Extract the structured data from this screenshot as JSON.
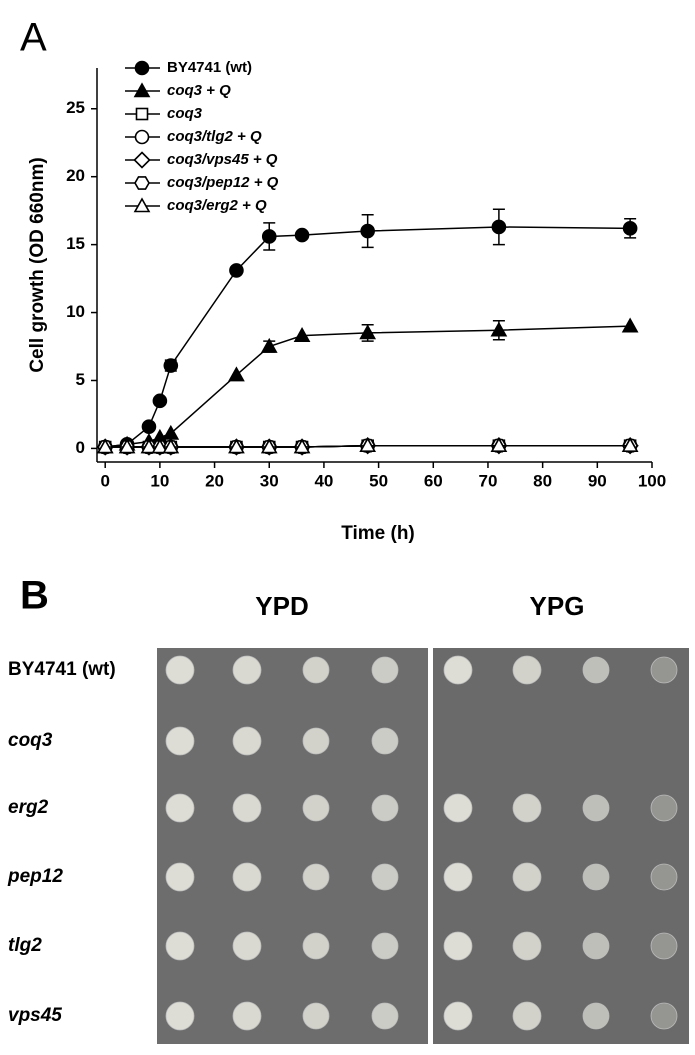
{
  "panel_labels": [
    "A",
    "B"
  ],
  "chart_data": {
    "type": "line",
    "x_label": "Time (h)",
    "y_label": "Cell growth (OD 660nm)",
    "x": [
      0,
      4,
      8,
      10,
      12,
      24,
      30,
      36,
      48,
      72,
      96
    ],
    "xlim": [
      -1.5,
      100
    ],
    "xticks": [
      0,
      10,
      20,
      30,
      40,
      50,
      60,
      70,
      80,
      90,
      100
    ],
    "ylim": [
      -1,
      28
    ],
    "yticks": [
      0,
      5,
      10,
      15,
      20,
      25
    ],
    "legend": "top-left",
    "series": [
      {
        "name": "BY4741 (wt)",
        "color": "#000000",
        "marker": "circle",
        "filled": true,
        "values": [
          0.1,
          0.3,
          1.6,
          3.5,
          6.1,
          13.1,
          15.6,
          15.7,
          16.0,
          16.3,
          16.2
        ],
        "errors": [
          null,
          null,
          null,
          null,
          0.4,
          null,
          1.0,
          0.2,
          1.2,
          1.3,
          0.7
        ]
      },
      {
        "name": "coq3 + Q",
        "color": "#000000",
        "marker": "triangle",
        "filled": true,
        "values": [
          0.1,
          0.3,
          0.5,
          0.8,
          1.1,
          5.4,
          7.5,
          8.3,
          8.5,
          8.7,
          9.0
        ],
        "errors": [
          null,
          null,
          null,
          null,
          null,
          null,
          0.4,
          null,
          0.6,
          0.7,
          null
        ]
      },
      {
        "name": "coq3",
        "color": "#000000",
        "marker": "square",
        "filled": false,
        "values": [
          0.1,
          0.1,
          0.1,
          0.1,
          0.1,
          0.1,
          0.1,
          0.1,
          0.2,
          0.2,
          0.2
        ]
      },
      {
        "name": "coq3/tlg2 + Q",
        "color": "#000000",
        "marker": "circle",
        "filled": false,
        "values": [
          0.1,
          0.1,
          0.1,
          0.1,
          0.1,
          0.1,
          0.1,
          0.1,
          0.2,
          0.2,
          0.2
        ]
      },
      {
        "name": "coq3/vps45 + Q",
        "color": "#000000",
        "marker": "diamond",
        "filled": false,
        "values": [
          0.1,
          0.1,
          0.1,
          0.1,
          0.1,
          0.1,
          0.1,
          0.1,
          0.2,
          0.2,
          0.2
        ]
      },
      {
        "name": "coq3/pep12 + Q",
        "color": "#000000",
        "marker": "hexagon",
        "filled": false,
        "values": [
          0.1,
          0.1,
          0.1,
          0.1,
          0.1,
          0.1,
          0.1,
          0.1,
          0.2,
          0.2,
          0.2
        ]
      },
      {
        "name": "coq3/erg2 + Q",
        "color": "#000000",
        "marker": "triangle",
        "filled": false,
        "values": [
          0.1,
          0.1,
          0.1,
          0.1,
          0.1,
          0.1,
          0.1,
          0.1,
          0.2,
          0.2,
          0.2
        ]
      }
    ]
  },
  "panel_b": {
    "media": [
      "YPD",
      "YPG"
    ],
    "strains": [
      "BY4741 (wt)",
      "coq3",
      "erg2",
      "pep12",
      "tlg2",
      "vps45"
    ]
  }
}
